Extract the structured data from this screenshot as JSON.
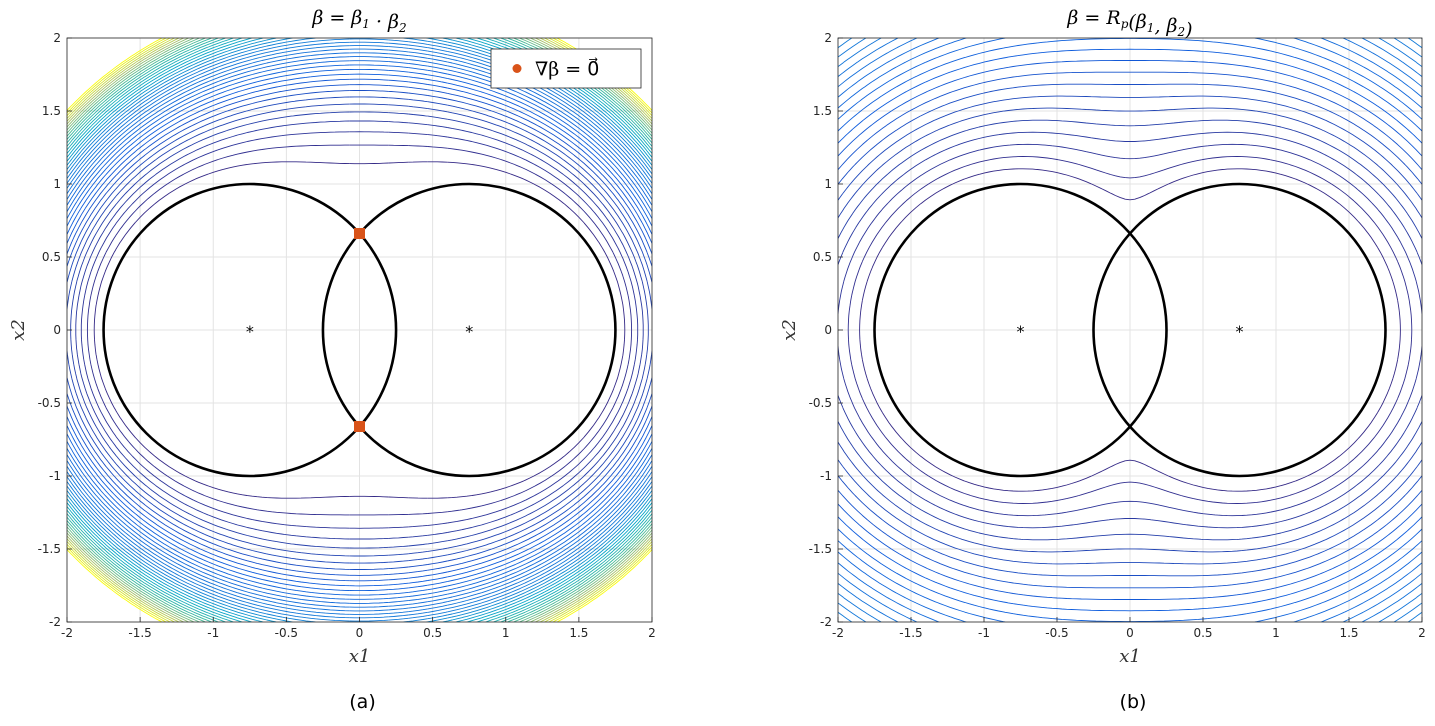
{
  "chart_data": [
    {
      "type": "contour",
      "title_parts": [
        {
          "t": "β = β"
        },
        {
          "t": "1",
          "sub": true
        },
        {
          "t": " · β"
        },
        {
          "t": "2",
          "sub": true
        }
      ],
      "xlabel": "x1",
      "ylabel": "x2",
      "caption": "(a)",
      "xlim": [
        -2,
        2
      ],
      "ylim": [
        -2,
        2
      ],
      "xticks": [
        -2,
        -1.5,
        -1,
        -0.5,
        0,
        0.5,
        1,
        1.5,
        2
      ],
      "yticks": [
        -2,
        -1.5,
        -1,
        -0.5,
        0,
        0.5,
        1,
        1.5,
        2
      ],
      "tick_labels": [
        "-2",
        "-1.5",
        "-1",
        "-0.5",
        "0",
        "0.5",
        "1",
        "1.5",
        "2"
      ],
      "grid": true,
      "field": "product",
      "colormap": "parula",
      "circles": [
        {
          "cx": -0.75,
          "cy": 0,
          "r": 1
        },
        {
          "cx": 0.75,
          "cy": 0,
          "r": 1
        }
      ],
      "centers": [
        {
          "x": -0.75,
          "y": 0,
          "marker": "*"
        },
        {
          "x": 0.75,
          "y": 0,
          "marker": "*"
        }
      ],
      "critical_points": [
        {
          "x": 0,
          "y": 0.661
        },
        {
          "x": 0,
          "y": -0.661
        }
      ],
      "critical_color": "#d95319",
      "legend": {
        "label": "∇β = 0⃗",
        "position": "top-right"
      }
    },
    {
      "type": "contour",
      "title_parts": [
        {
          "t": "β = R"
        },
        {
          "t": "p",
          "sub": true
        },
        {
          "t": "(β"
        },
        {
          "t": "1",
          "sub": true
        },
        {
          "t": ", β"
        },
        {
          "t": "2",
          "sub": true
        },
        {
          "t": ")"
        }
      ],
      "xlabel": "x1",
      "ylabel": "x2",
      "caption": "(b)",
      "xlim": [
        -2,
        2
      ],
      "ylim": [
        -2,
        2
      ],
      "xticks": [
        -2,
        -1.5,
        -1,
        -0.5,
        0,
        0.5,
        1,
        1.5,
        2
      ],
      "yticks": [
        -2,
        -1.5,
        -1,
        -0.5,
        0,
        0.5,
        1,
        1.5,
        2
      ],
      "tick_labels": [
        "-2",
        "-1.5",
        "-1",
        "-0.5",
        "0",
        "0.5",
        "1",
        "1.5",
        "2"
      ],
      "grid": true,
      "field": "rfunction",
      "colormap": "parula",
      "circles": [
        {
          "cx": -0.75,
          "cy": 0,
          "r": 1
        },
        {
          "cx": 0.75,
          "cy": 0,
          "r": 1
        }
      ],
      "centers": [
        {
          "x": -0.75,
          "y": 0,
          "marker": "*"
        },
        {
          "x": 0.75,
          "y": 0,
          "marker": "*"
        }
      ],
      "critical_points": [],
      "legend": null
    }
  ]
}
